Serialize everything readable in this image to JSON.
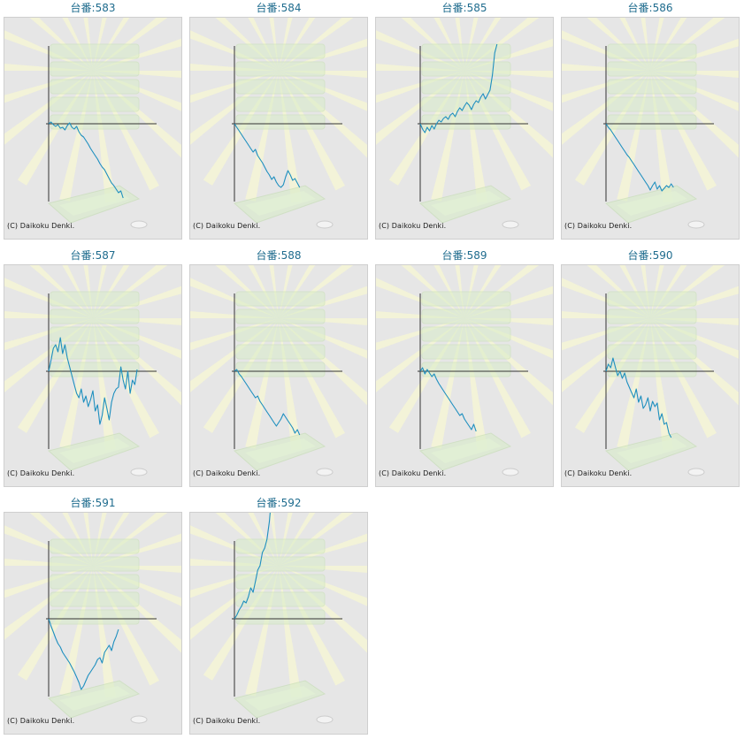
{
  "title_prefix": "台番:",
  "copyright": "(C) Daikoku Denki.",
  "colors": {
    "line": "#1e8fbf",
    "axis": "#333333",
    "frame_bg": "#e6e6e6",
    "frame_border": "#cfcfcf",
    "title": "#1f6c8e",
    "bg_rays": "#f4f4d6",
    "bg_box": "#d8ecc9"
  },
  "chart_data": [
    {
      "type": "line",
      "machine": "583",
      "y": [
        0,
        2,
        -1,
        -3,
        -1,
        -5,
        -4,
        -7,
        -2,
        1,
        -4,
        -6,
        -3,
        -9,
        -13,
        -15,
        -19,
        -23,
        -28,
        -32,
        -36,
        -40,
        -45,
        -49,
        -52,
        -57,
        -62,
        -67,
        -70,
        -74,
        -78,
        -76,
        -84
      ]
    },
    {
      "type": "line",
      "machine": "584",
      "y": [
        0,
        -4,
        -8,
        -12,
        -16,
        -20,
        -24,
        -28,
        -32,
        -29,
        -36,
        -40,
        -44,
        -49,
        -54,
        -58,
        -63,
        -60,
        -66,
        -70,
        -72,
        -69,
        -60,
        -53,
        -58,
        -64,
        -62,
        -67,
        -72
      ]
    },
    {
      "type": "line",
      "machine": "585",
      "y": [
        0,
        -6,
        -10,
        -4,
        -8,
        -2,
        -6,
        0,
        4,
        2,
        6,
        8,
        5,
        10,
        12,
        8,
        14,
        18,
        15,
        20,
        24,
        21,
        16,
        22,
        26,
        24,
        30,
        34,
        28,
        33,
        38,
        55,
        80,
        90
      ]
    },
    {
      "type": "line",
      "machine": "586",
      "y": [
        0,
        -4,
        -7,
        -11,
        -15,
        -19,
        -23,
        -27,
        -31,
        -35,
        -38,
        -42,
        -46,
        -50,
        -54,
        -58,
        -62,
        -66,
        -70,
        -75,
        -70,
        -66,
        -74,
        -70,
        -76,
        -73,
        -70,
        -72,
        -68,
        -72
      ]
    },
    {
      "type": "line",
      "machine": "587",
      "y": [
        0,
        12,
        26,
        30,
        22,
        38,
        20,
        30,
        15,
        5,
        -5,
        -15,
        -25,
        -30,
        -20,
        -35,
        -28,
        -40,
        -32,
        -22,
        -45,
        -38,
        -60,
        -50,
        -30,
        -42,
        -55,
        -35,
        -25,
        -20,
        -18,
        5,
        -10,
        -20,
        0,
        -25,
        -10,
        -15,
        2
      ]
    },
    {
      "type": "line",
      "machine": "588",
      "y": [
        0,
        2,
        -3,
        -6,
        -10,
        -14,
        -18,
        -22,
        -26,
        -30,
        -28,
        -34,
        -38,
        -42,
        -46,
        -50,
        -54,
        -58,
        -62,
        -58,
        -54,
        -48,
        -52,
        -56,
        -60,
        -64,
        -70,
        -66,
        -72
      ]
    },
    {
      "type": "line",
      "machine": "589",
      "y": [
        0,
        4,
        -3,
        2,
        -2,
        -6,
        -3,
        -9,
        -14,
        -18,
        -22,
        -26,
        -30,
        -34,
        -38,
        -42,
        -46,
        -50,
        -48,
        -54,
        -58,
        -62,
        -66,
        -60,
        -68
      ]
    },
    {
      "type": "line",
      "machine": "590",
      "y": [
        0,
        8,
        4,
        15,
        5,
        -5,
        0,
        -8,
        -2,
        -12,
        -18,
        -24,
        -30,
        -20,
        -35,
        -28,
        -42,
        -38,
        -30,
        -45,
        -34,
        -40,
        -36,
        -55,
        -48,
        -60,
        -58,
        -70,
        -75
      ]
    },
    {
      "type": "line",
      "machine": "591",
      "y": [
        0,
        -8,
        -15,
        -22,
        -28,
        -32,
        -38,
        -42,
        -46,
        -50,
        -55,
        -60,
        -66,
        -72,
        -80,
        -76,
        -70,
        -64,
        -60,
        -56,
        -52,
        -46,
        -44,
        -50,
        -38,
        -34,
        -30,
        -36,
        -26,
        -20,
        -12
      ]
    },
    {
      "type": "line",
      "machine": "592",
      "y": [
        0,
        4,
        10,
        14,
        20,
        18,
        25,
        35,
        30,
        42,
        55,
        60,
        75,
        80,
        90,
        110,
        140
      ]
    }
  ]
}
